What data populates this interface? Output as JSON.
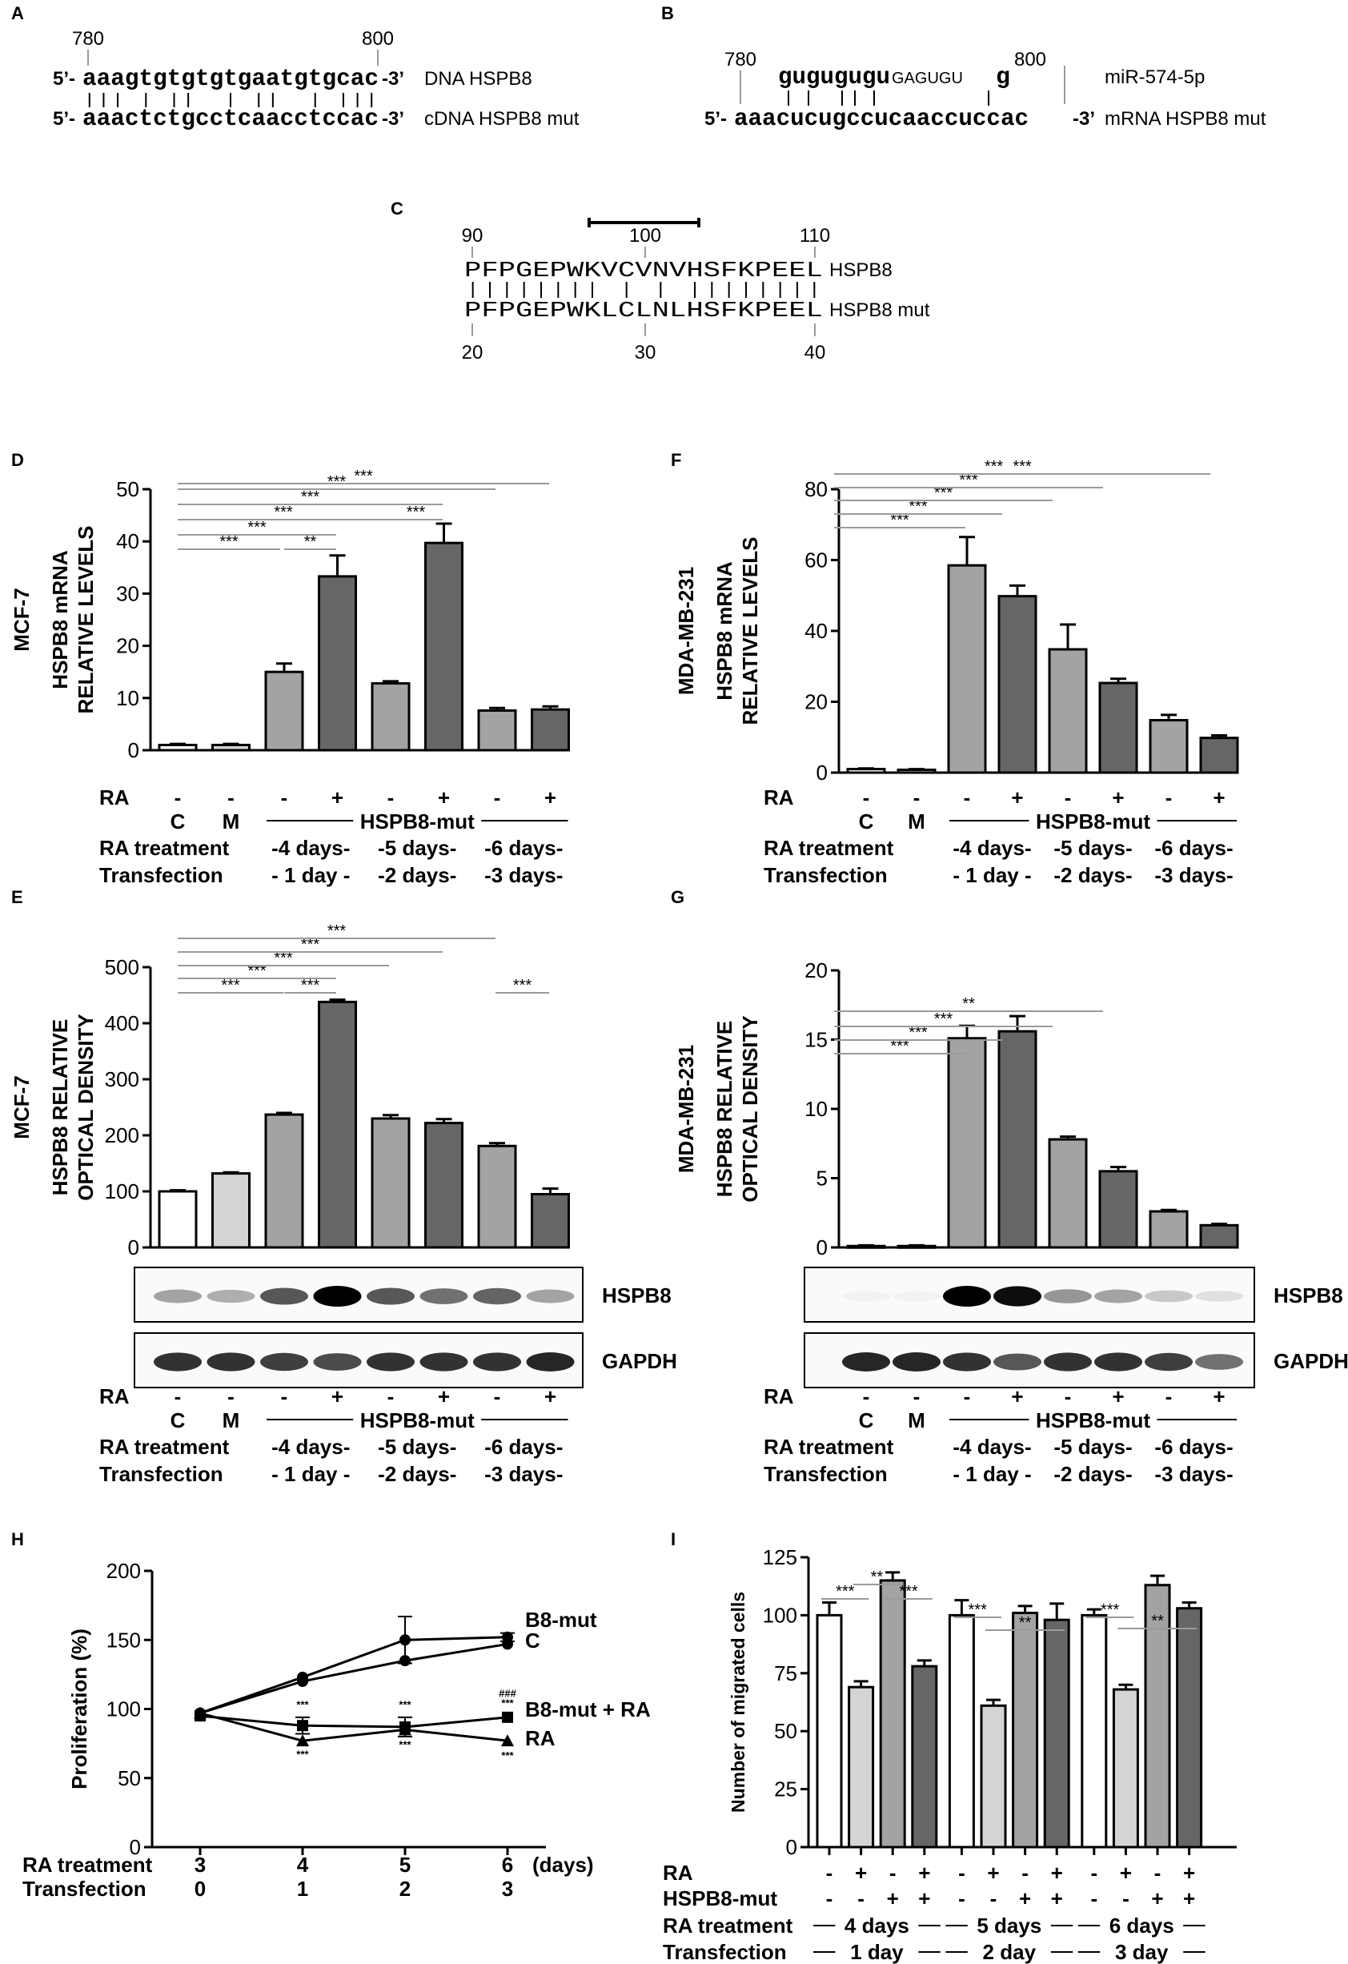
{
  "colors": {
    "white": "#ffffff",
    "light": "#d4d4d4",
    "mid": "#a3a3a3",
    "dark": "#666666",
    "sig": "#9a9a9a",
    "ink": "#000000"
  },
  "panels": {
    "A": "A",
    "B": "B",
    "C": "C",
    "D": "D",
    "E": "E",
    "F": "F",
    "G": "G",
    "H": "H",
    "I": "I"
  },
  "panel_a": {
    "pos_start": "780",
    "pos_end": "800",
    "dna_prefix": "5’-",
    "dna_seq": "aaagtgtgtgtgaatgtgcac",
    "dna_suffix": "-3’",
    "dna_label": "DNA HSPB8",
    "cdna_prefix": "5’-",
    "cdna_seq": "aaactctgcctcaacctccac",
    "cdna_suffix": "-3’",
    "cdna_label": "cDNA HSPB8 mut"
  },
  "panel_b": {
    "pos_start": "780",
    "pos_end": "800",
    "mirna_seq": "gugugugu",
    "mirna_tail": "GAGUGU",
    "mirna_last": "g",
    "mirna_label": "miR-574-5p",
    "mrna_prefix": "5’-",
    "mrna_seq": "aaacucugccucaaccuccac",
    "mrna_suffix": "-3’",
    "mrna_label": "mRNA HSPB8 mut"
  },
  "panel_c": {
    "top_positions": [
      "90",
      "100",
      "110"
    ],
    "bottom_positions": [
      "20",
      "30",
      "40"
    ],
    "seq_top": "PFPGEPWKVCVNVHSFKPEEL",
    "label_top": "HSPB8",
    "seq_bottom": "PFPGEPWKLCLNLHSFKPEEL",
    "label_bottom": "HSPB8 mut"
  },
  "xaxis": {
    "ra_label": "RA",
    "ra_signs": [
      "-",
      "-",
      "-",
      "+",
      "-",
      "+",
      "-",
      "+"
    ],
    "c_label": "C",
    "m_label": "M",
    "hspb8mut_label": "HSPB8-mut",
    "treatment_label": "RA treatment",
    "treatment_groups": [
      "-4 days-",
      "-5 days-",
      "-6 days-"
    ],
    "transfection_label": "Transfection",
    "transfection_groups": [
      "- 1 day -",
      "-2 days-",
      "-3 days-"
    ]
  },
  "chart_data": [
    {
      "panel": "D",
      "type": "bar",
      "cell_line": "MCF-7",
      "ylabel": "HSPB8 mRNA RELATIVE LEVELS",
      "categories": [
        "C",
        "M",
        "4d -",
        "4d +",
        "5d -",
        "5d +",
        "6d -",
        "6d +"
      ],
      "values": [
        1,
        1,
        15,
        33.3,
        12.8,
        39.7,
        7.6,
        7.8
      ],
      "errors": [
        0.2,
        0.2,
        1.6,
        4.0,
        0.4,
        3.7,
        0.5,
        0.6
      ],
      "ylim": [
        0,
        50
      ],
      "yticks": [
        "0",
        "10",
        "20",
        "30",
        "40",
        "50"
      ],
      "significance": [
        {
          "from": 0,
          "to": 2,
          "label": "***"
        },
        {
          "from": 3,
          "to": 2,
          "label": "**"
        },
        {
          "from": 0,
          "to": 3,
          "label": "***"
        },
        {
          "from": 0,
          "to": 4,
          "label": "***"
        },
        {
          "from": 4,
          "to": 5,
          "label": "***"
        },
        {
          "from": 0,
          "to": 5,
          "label": "***"
        },
        {
          "from": 0,
          "to": 6,
          "label": "***"
        },
        {
          "from": 0,
          "to": 7,
          "label": "***"
        }
      ]
    },
    {
      "panel": "F",
      "type": "bar",
      "cell_line": "MDA-MB-231",
      "ylabel": "HSPB8 mRNA RELATIVE LEVELS",
      "categories": [
        "C",
        "M",
        "4d -",
        "4d +",
        "5d -",
        "5d +",
        "6d -",
        "6d +"
      ],
      "values": [
        1,
        0.8,
        58.5,
        49.8,
        34.8,
        25.3,
        14.8,
        9.8
      ],
      "errors": [
        0.2,
        0.2,
        8.0,
        3.0,
        7.0,
        1.2,
        1.5,
        0.7
      ],
      "ylim": [
        0,
        80
      ],
      "yticks": [
        "0",
        "20",
        "40",
        "60",
        "80"
      ],
      "significance": [
        {
          "from": 0,
          "to": 2,
          "label": "***"
        },
        {
          "from": 0,
          "to": 3,
          "label": "***"
        },
        {
          "from": 0,
          "to": 4,
          "label": "***"
        },
        {
          "from": 0,
          "to": 5,
          "label": "***"
        },
        {
          "from": 0,
          "to": 6,
          "label": "***"
        },
        {
          "from": 0,
          "to": 7,
          "label": "***"
        }
      ]
    },
    {
      "panel": "E",
      "type": "bar",
      "cell_line": "MCF-7",
      "ylabel": "HSPB8 RELATIVE OPTICAL DENSITY",
      "categories": [
        "C",
        "M",
        "4d -",
        "4d +",
        "5d -",
        "5d +",
        "6d -",
        "6d +"
      ],
      "values": [
        100,
        132,
        237,
        438,
        230,
        222,
        181,
        95
      ],
      "errors": [
        2,
        2,
        3,
        4,
        6,
        7,
        5,
        10
      ],
      "ylim": [
        0,
        500
      ],
      "yticks": [
        "0",
        "100",
        "200",
        "300",
        "400",
        "500"
      ],
      "significance": [
        {
          "from": 0,
          "to": 2,
          "label": "***"
        },
        {
          "from": 2,
          "to": 3,
          "label": "***"
        },
        {
          "from": 0,
          "to": 3,
          "label": "***"
        },
        {
          "from": 0,
          "to": 4,
          "label": "***"
        },
        {
          "from": 0,
          "to": 5,
          "label": "***"
        },
        {
          "from": 0,
          "to": 6,
          "label": "***"
        },
        {
          "from": 6,
          "to": 7,
          "label": "***"
        }
      ]
    },
    {
      "panel": "G",
      "type": "bar",
      "cell_line": "MDA-MB-231",
      "ylabel": "HSPB8 RELATIVE OPTICAL DENSITY",
      "categories": [
        "C",
        "M",
        "4d -",
        "4d +",
        "5d -",
        "5d +",
        "6d -",
        "6d +"
      ],
      "values": [
        0.1,
        0.1,
        15.1,
        15.6,
        7.8,
        5.5,
        2.6,
        1.6
      ],
      "errors": [
        0.05,
        0.05,
        0.9,
        1.1,
        0.2,
        0.3,
        0.1,
        0.1
      ],
      "ylim": [
        0,
        20
      ],
      "yticks": [
        "0",
        "5",
        "10",
        "15",
        "20"
      ],
      "significance": [
        {
          "from": 0,
          "to": 2,
          "label": "***"
        },
        {
          "from": 0,
          "to": 3,
          "label": "***"
        },
        {
          "from": 0,
          "to": 4,
          "label": "***"
        },
        {
          "from": 0,
          "to": 5,
          "label": "**"
        }
      ]
    },
    {
      "panel": "H",
      "type": "line",
      "ylabel": "Proliferation (%)",
      "x": [
        3,
        4,
        5,
        6
      ],
      "xticks": [
        "3",
        "4",
        "5",
        "6"
      ],
      "xunit": "(days)",
      "transfection_ticks": [
        "0",
        "1",
        "2",
        "3"
      ],
      "ylim": [
        0,
        200
      ],
      "yticks": [
        "0",
        "50",
        "100",
        "150",
        "200"
      ],
      "series": [
        {
          "name": "B8-mut",
          "marker": "circle",
          "values": [
            97,
            123,
            150,
            152
          ],
          "errors": [
            0,
            0,
            17,
            3
          ]
        },
        {
          "name": "C",
          "marker": "circle",
          "values": [
            97,
            120,
            135,
            147
          ],
          "errors": [
            0,
            0,
            0,
            0
          ]
        },
        {
          "name": "B8-mut + RA",
          "marker": "square",
          "values": [
            95,
            88,
            87,
            94
          ],
          "errors": [
            0,
            6,
            7,
            0
          ]
        },
        {
          "name": "RA",
          "marker": "triangle",
          "values": [
            97,
            77,
            85,
            77
          ],
          "errors": [
            0,
            0,
            0,
            0
          ]
        }
      ],
      "annotations": [
        {
          "x": 4,
          "y": 103,
          "label": "***"
        },
        {
          "x": 4,
          "y": 67,
          "label": "***"
        },
        {
          "x": 5,
          "y": 103,
          "label": "***"
        },
        {
          "x": 5,
          "y": 74,
          "label": "***"
        },
        {
          "x": 6,
          "y": 111,
          "label": "###"
        },
        {
          "x": 6,
          "y": 104,
          "label": "***"
        },
        {
          "x": 6,
          "y": 66,
          "label": "***"
        }
      ]
    },
    {
      "panel": "I",
      "type": "bar",
      "ylabel": "Number of migrated cells",
      "categories": [
        "4d C",
        "4d RA",
        "4d B8",
        "4d B8+RA",
        "5d C",
        "5d RA",
        "5d B8",
        "5d B8+RA",
        "6d C",
        "6d RA",
        "6d B8",
        "6d B8+RA"
      ],
      "values": [
        100,
        69,
        115,
        78,
        100,
        61,
        101,
        98,
        100,
        68,
        113,
        103
      ],
      "errors": [
        5.5,
        2.5,
        3.5,
        2.5,
        6.5,
        2.5,
        3,
        7,
        2.5,
        2,
        4,
        2.5
      ],
      "ylim": [
        0,
        125
      ],
      "yticks": [
        "0",
        "25",
        "50",
        "75",
        "100",
        "125"
      ],
      "ra_signs": [
        "-",
        "+",
        "-",
        "+",
        "-",
        "+",
        "-",
        "+",
        "-",
        "+",
        "-",
        "+"
      ],
      "hspb8mut_signs": [
        "-",
        "-",
        "+",
        "+",
        "-",
        "-",
        "+",
        "+",
        "-",
        "-",
        "+",
        "+"
      ],
      "ra_label": "RA",
      "hspb8mut_label": "HSPB8-mut",
      "treatment_label": "RA treatment",
      "treatment_groups": [
        "4 days",
        "5 days",
        "6 days"
      ],
      "transfection_label": "Transfection",
      "transfection_groups": [
        "1 day",
        "2 day",
        "3 day"
      ],
      "significance": [
        {
          "from": 0,
          "to": 1,
          "label": "***"
        },
        {
          "from": 1,
          "to": 2,
          "label": "**"
        },
        {
          "from": 2,
          "to": 3,
          "label": "***"
        },
        {
          "from": 4,
          "to": 5,
          "label": "***"
        },
        {
          "from": 5,
          "to": 7,
          "label": "**"
        },
        {
          "from": 8,
          "to": 9,
          "label": "***"
        },
        {
          "from": 9,
          "to": 11,
          "label": "**"
        }
      ]
    }
  ],
  "blots": {
    "E": {
      "labels": [
        "HSPB8",
        "GAPDH"
      ],
      "hspb8_intensity": [
        0.35,
        0.3,
        0.65,
        1.0,
        0.65,
        0.55,
        0.6,
        0.35
      ],
      "gapdh_intensity": [
        0.8,
        0.8,
        0.75,
        0.7,
        0.8,
        0.8,
        0.8,
        0.85
      ]
    },
    "G": {
      "labels": [
        "HSPB8",
        "GAPDH"
      ],
      "hspb8_intensity": [
        0.02,
        0.02,
        1.0,
        0.95,
        0.4,
        0.35,
        0.2,
        0.1
      ],
      "gapdh_intensity": [
        0.85,
        0.85,
        0.8,
        0.65,
        0.8,
        0.8,
        0.75,
        0.55
      ]
    }
  }
}
